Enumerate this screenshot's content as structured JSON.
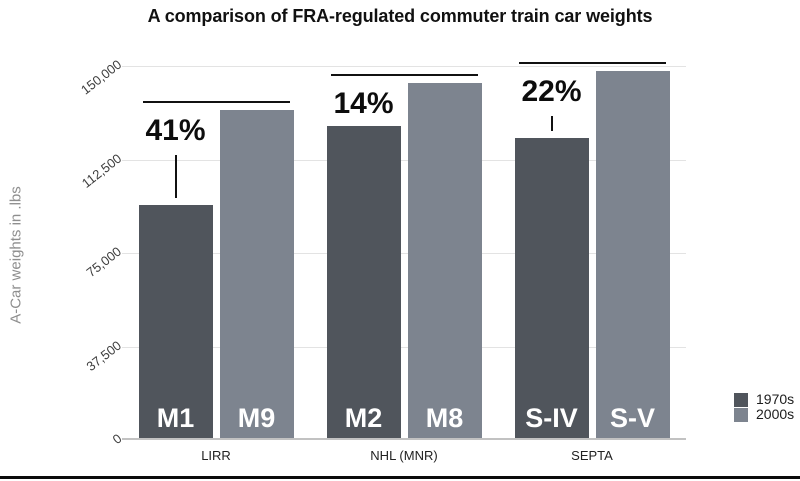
{
  "colors": {
    "background": "#ffffff",
    "bar_1970s": "#50555c",
    "bar_2000s": "#7d848f",
    "grid": "#e3e3e3",
    "baseline": "#c2c2c2",
    "annotation": "#111111",
    "tick_text": "#3e3e3e",
    "axis_title_text": "#8e8e8e",
    "category_text": "#222222",
    "bar_label_text": "#ffffff",
    "title_text": "#111111",
    "footer_rule": "#0b0b0b"
  },
  "chart_data": {
    "type": "bar",
    "title": "A comparison of FRA-regulated commuter train car weights",
    "xlabel": "",
    "ylabel": "A-Car weights in .lbs",
    "ylim": [
      0,
      150000
    ],
    "yticks": [
      0,
      37500,
      75000,
      112500,
      150000
    ],
    "ytick_labels": [
      "0",
      "37,500",
      "75,000",
      "112,500",
      "150,000"
    ],
    "categories": [
      "LIRR",
      "NHL (MNR)",
      "SEPTA"
    ],
    "series": [
      {
        "name": "1970s",
        "color": "#50555c",
        "bar_labels": [
          "M1",
          "M2",
          "S-IV"
        ],
        "values": [
          93500,
          125000,
          120500
        ]
      },
      {
        "name": "2000s",
        "color": "#7d848f",
        "bar_labels": [
          "M9",
          "M8",
          "S-V"
        ],
        "values": [
          131500,
          142500,
          147000
        ]
      }
    ],
    "annotations": [
      {
        "category": "LIRR",
        "label": "41%"
      },
      {
        "category": "NHL (MNR)",
        "label": "14%"
      },
      {
        "category": "SEPTA",
        "label": "22%"
      }
    ],
    "grid": true,
    "legend_position": "bottom-right"
  }
}
